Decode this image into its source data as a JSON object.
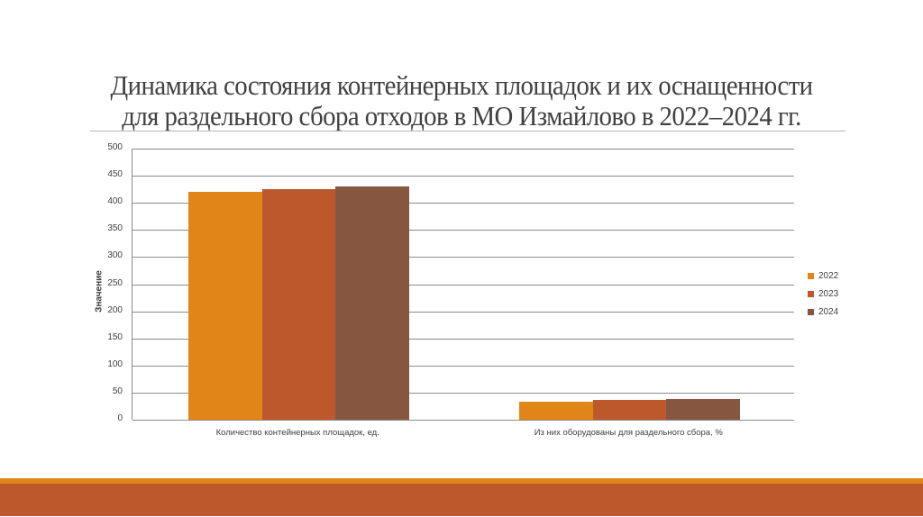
{
  "slide": {
    "title_line1": "Динамика состояния контейнерных площадок и их оснащенности",
    "title_line2": "для раздельного сбора отходов в МО Измайлово в 2022–2024 гг."
  },
  "chart_data": {
    "type": "bar",
    "title": "",
    "xlabel": "",
    "ylabel": "Значение",
    "ylim": [
      0,
      500
    ],
    "yticks": [
      "500",
      "450",
      "400",
      "350",
      "300",
      "250",
      "200",
      "150",
      "100",
      "50",
      "0"
    ],
    "grid": true,
    "legend_position": "right",
    "categories": [
      "Количество контейнерных площадок, ед.",
      "Из них оборудованы для раздельного сбора, %"
    ],
    "series": [
      {
        "name": "2022",
        "color": "#e28519",
        "values": [
          420,
          33
        ]
      },
      {
        "name": "2023",
        "color": "#bd582c",
        "values": [
          425,
          36
        ]
      },
      {
        "name": "2024",
        "color": "#875640",
        "values": [
          430,
          39
        ]
      }
    ]
  },
  "colors": {
    "stripe_orange": "#e28519",
    "stripe_red": "#bd582c"
  }
}
